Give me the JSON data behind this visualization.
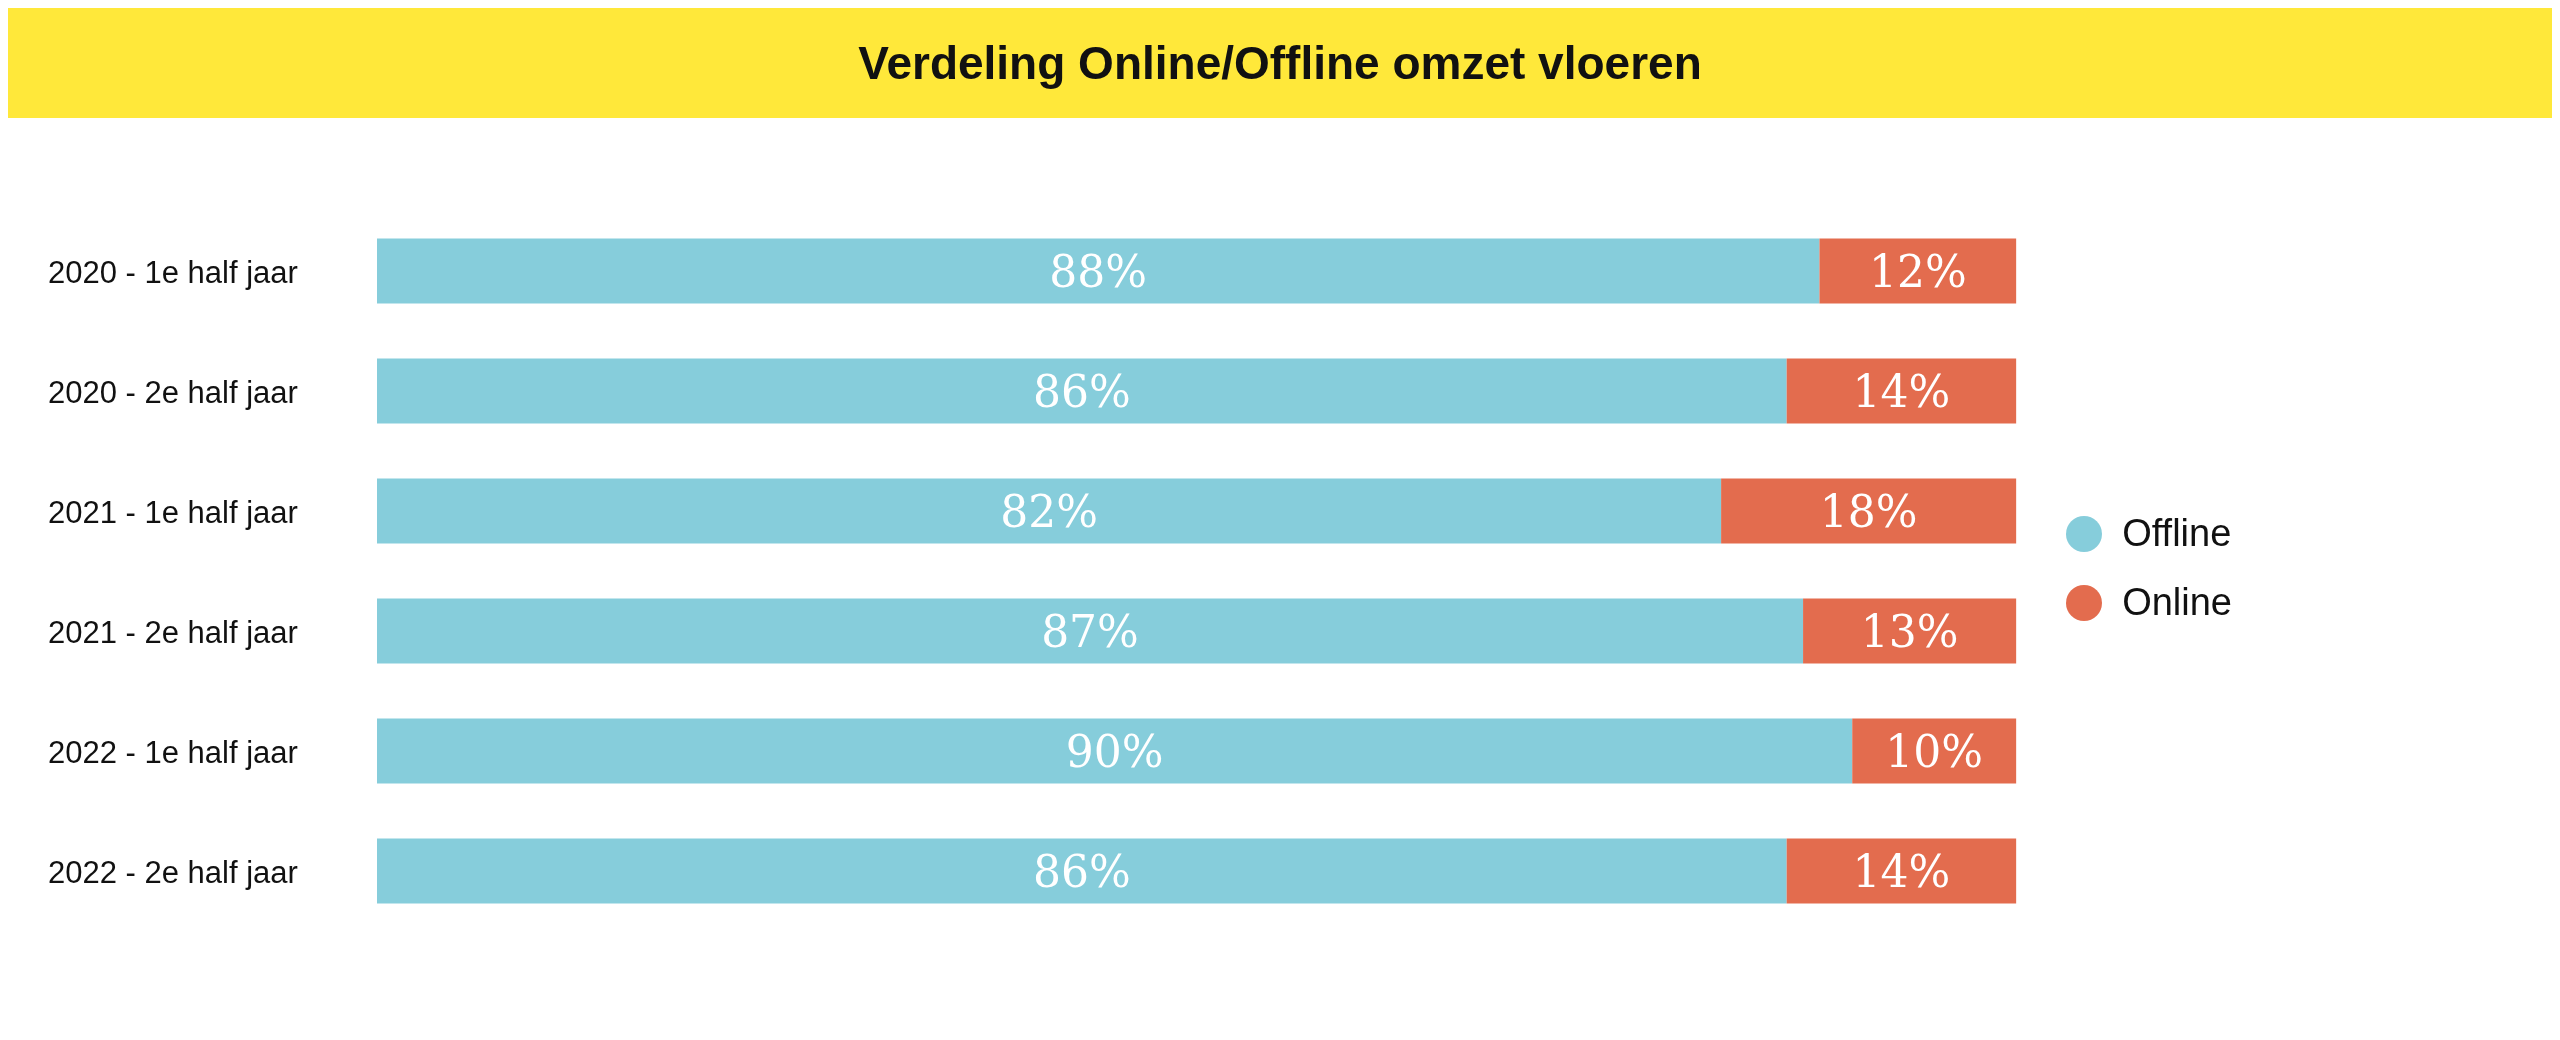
{
  "chart_data": {
    "type": "bar",
    "orientation": "horizontal",
    "stacked": true,
    "title": "Verdeling Online/Offline omzet vloeren",
    "categories": [
      "2020 - 1e half jaar",
      "2020 - 2e half jaar",
      "2021 - 1e half jaar",
      "2021 - 2e half jaar",
      "2022 - 1e half jaar",
      "2022 - 2e half jaar"
    ],
    "series": [
      {
        "name": "Offline",
        "color": "#86cddb",
        "values": [
          88,
          86,
          82,
          87,
          90,
          86
        ],
        "value_labels": [
          "88%",
          "86%",
          "82%",
          "87%",
          "90%",
          "86%"
        ]
      },
      {
        "name": "Online",
        "color": "#e36c4e",
        "values": [
          12,
          14,
          18,
          13,
          10,
          14
        ],
        "value_labels": [
          "12%",
          "14%",
          "18%",
          "13%",
          "10%",
          "14%"
        ]
      }
    ],
    "legend": "right",
    "grid": false
  }
}
